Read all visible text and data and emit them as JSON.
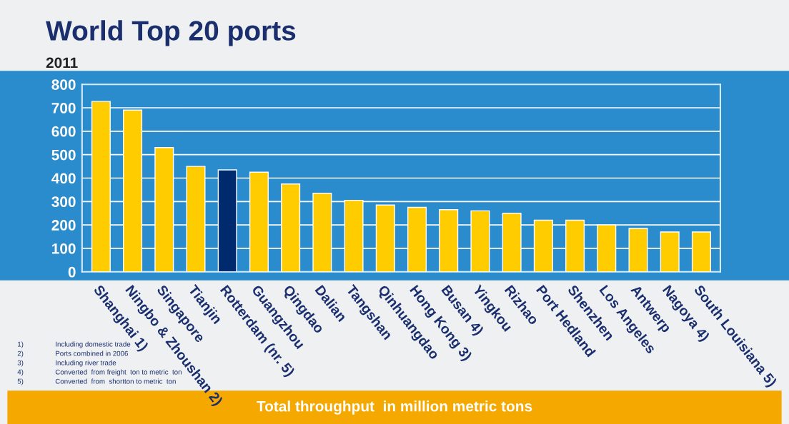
{
  "chart_data": {
    "type": "bar",
    "title": "World Top 20 ports",
    "subtitle": "2011",
    "categories": [
      "Shanghai 1)",
      "Ningbo & Zhoushan 2)",
      "Singapore",
      "Tianjin",
      "Rotterdam (nr. 5)",
      "Guangzhou",
      "Qingdao",
      "Dalian",
      "Tangshan",
      "Qinhuangdao",
      "Hong Kong 3)",
      "Busan 4)",
      "Yingkou",
      "Rizhao",
      "Port Hedland",
      "Shenzhen",
      "Los Angeles",
      "Antwerp",
      "Nagoya 4)",
      "South Louisiana 5)"
    ],
    "values": [
      727,
      690,
      530,
      450,
      435,
      425,
      375,
      335,
      305,
      285,
      275,
      265,
      260,
      250,
      220,
      220,
      200,
      185,
      170,
      170
    ],
    "colors": [
      "#ffcc00",
      "#ffcc00",
      "#ffcc00",
      "#ffcc00",
      "#002a6e",
      "#ffcc00",
      "#ffcc00",
      "#ffcc00",
      "#ffcc00",
      "#ffcc00",
      "#ffcc00",
      "#ffcc00",
      "#ffcc00",
      "#ffcc00",
      "#ffcc00",
      "#ffcc00",
      "#ffcc00",
      "#ffcc00",
      "#ffcc00",
      "#ffcc00"
    ],
    "ylim": [
      0,
      800
    ],
    "yticks": [
      0,
      100,
      200,
      300,
      400,
      500,
      600,
      700,
      800
    ],
    "grid": "y",
    "xlabel": "Total throughput  in million metric tons",
    "annotations": [
      "1)\tIncluding domestic trade",
      "2)\tPorts combined in 2006",
      "3)\tIncluding river trade",
      "4)\tConverted  from freight  ton to metric  ton",
      "5)\tConverted  from  shortton to metric  ton"
    ]
  }
}
